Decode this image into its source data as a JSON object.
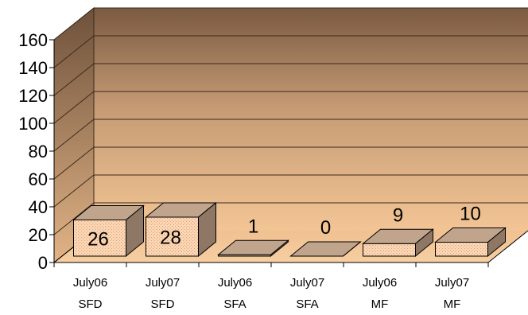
{
  "chart_data": {
    "type": "bar",
    "title": "",
    "xlabel": "",
    "ylabel": "",
    "categories": [
      [
        "July06",
        "SFD"
      ],
      [
        "July07",
        "SFD"
      ],
      [
        "July06",
        "SFA"
      ],
      [
        "July07",
        "SFA"
      ],
      [
        "July06",
        "MF"
      ],
      [
        "July07",
        "MF"
      ]
    ],
    "values": [
      26,
      28,
      1,
      0,
      9,
      10
    ],
    "data_labels": [
      "26",
      "28",
      "1",
      "0",
      "9",
      "10"
    ],
    "ylim": [
      0,
      160
    ],
    "yticks": [
      "0",
      "20",
      "40",
      "60",
      "80",
      "100",
      "120",
      "140",
      "160"
    ],
    "grid": true,
    "legend": "none",
    "style": "3d-column",
    "colors": {
      "wall_top": "#7a5a42",
      "wall_bottom": "#f3c595",
      "bar_front": "#fbd6b4",
      "bar_top": "#c0a58c",
      "bar_side": "#8f7765",
      "grid": "#3b2a1c",
      "outline": "#000000"
    }
  }
}
